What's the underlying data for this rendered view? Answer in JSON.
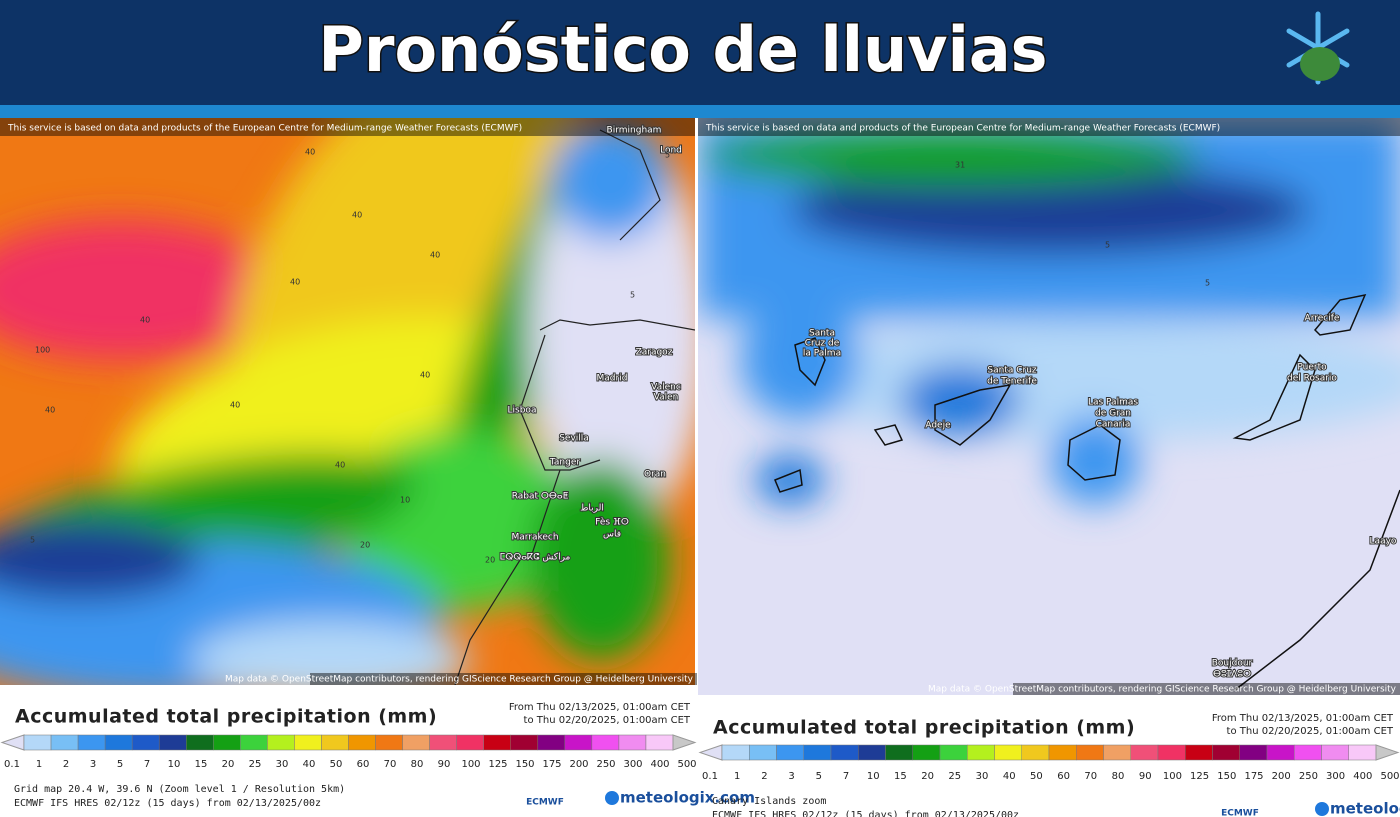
{
  "header": {
    "title": "Pronóstico de lluvias"
  },
  "scale": {
    "labels": [
      "0.1",
      "1",
      "2",
      "3",
      "5",
      "7",
      "10",
      "15",
      "20",
      "25",
      "30",
      "40",
      "50",
      "60",
      "70",
      "80",
      "90",
      "100",
      "125",
      "150",
      "175",
      "200",
      "250",
      "300",
      "400",
      "500"
    ],
    "colors": [
      "#e0e0f5",
      "#b4d8f8",
      "#78bff5",
      "#3c96f0",
      "#1e78dc",
      "#1e5ac8",
      "#1e3c96",
      "#0f6e1e",
      "#14a014",
      "#3cd23c",
      "#b4f01e",
      "#f0f01e",
      "#f0c81e",
      "#f09600",
      "#f07814",
      "#f0a064",
      "#f05078",
      "#f03264",
      "#c80014",
      "#a00032",
      "#820082",
      "#c814c8",
      "#f050f0",
      "#f08cf0",
      "#f8c8f8",
      "#c8c8c8"
    ]
  },
  "panels": [
    {
      "attribution": "This service is based on data and products of the European Centre for Medium-range Weather Forecasts (ECMWF)",
      "map_credit": "Map data © OpenStreetMap contributors, rendering GIScience Research Group @ Heidelberg University",
      "places": [
        "Birmingham",
        "Lond",
        "Zaragoz",
        "Madrid",
        "Valenc",
        "Valen",
        "Lisboa",
        "Sevilla",
        "Tanger",
        "Oran",
        "Rabat ⵔⴱⴰⵟ",
        "الرباط",
        "Fès ⴼⵙ",
        "فاس",
        "Marrakech",
        "ⵎⵕⵕⴰⴽⵛ مراكش"
      ],
      "contours": [
        "40",
        "40",
        "40",
        "40",
        "40",
        "100",
        "40",
        "40",
        "40",
        "40",
        "20",
        "20",
        "10",
        "5",
        "5",
        "5"
      ],
      "legend_title": "Accumulated total precipitation (mm)",
      "date_from": "From Thu 02/13/2025, 01:00am CET",
      "date_to": "to Thu 02/20/2025, 01:00am CET",
      "footer": [
        "Grid map 20.4 W, 39.6 N (Zoom level 1 / Resolution 5km)",
        "ECMWF IFS HRES 02/12z (15 days) from 02/13/2025/00z"
      ],
      "logos": [
        "ECMWF",
        "meteologix.com"
      ]
    },
    {
      "attribution": "This service is based on data and products of the European Centre for Medium-range Weather Forecasts (ECMWF)",
      "map_credit": "Map data © OpenStreetMap contributors, rendering GIScience Research Group @ Heidelberg University",
      "places": [
        "Santa",
        "Cruz de",
        "la Palma",
        "Santa Cruz",
        "de Tenerife",
        "Adeje",
        "Las Palmas",
        "de Gran",
        "Canaria",
        "Puerto",
        "del Rosario",
        "Arrecife",
        "Laayo",
        "Boujdour",
        "ⴱⵓⵊⴷⵓⵔ"
      ],
      "contours": [
        "31",
        "5",
        "5"
      ],
      "legend_title": "Accumulated total precipitation (mm)",
      "date_from": "From Thu 02/13/2025, 01:00am CET",
      "date_to": "to Thu 02/20/2025, 01:00am CET",
      "footer": [
        "Canary Islands zoom",
        "ECMWF IFS HRES 02/12z (15 days) from 02/13/2025/00z"
      ],
      "logos": [
        "ECMWF",
        "meteologix.com"
      ]
    }
  ]
}
